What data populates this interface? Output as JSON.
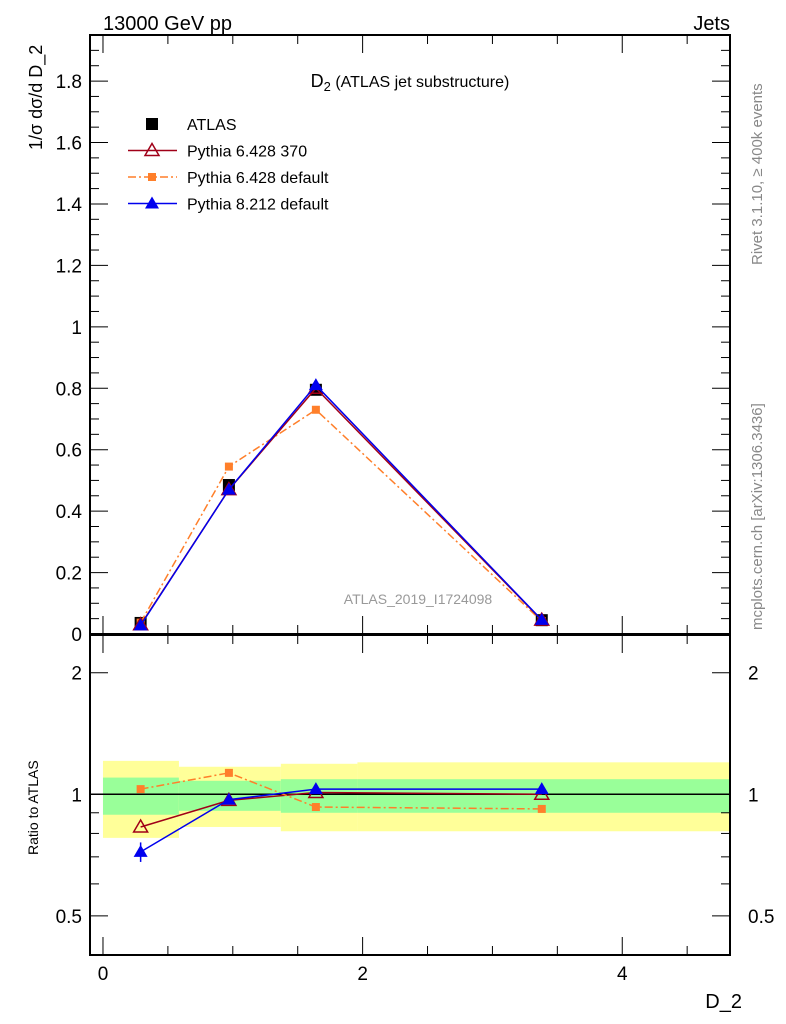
{
  "header": {
    "left": "13000 GeV pp",
    "right": "Jets"
  },
  "side_text": {
    "top": "Rivet 3.1.10, ≥ 400k events",
    "bottom": "mcplots.cern.ch [arXiv:1306.3436]"
  },
  "watermark": "ATLAS_2019_I1724098",
  "colors": {
    "atlas": "#000000",
    "p6_370": "#a00018",
    "p6_default": "#ff7f2a",
    "p8": "#0000ee",
    "band_inner": "#99ff99",
    "band_outer": "#ffff99"
  },
  "chart_data": [
    {
      "type": "line",
      "title_main": "D",
      "title_sub": "2",
      "title_rest": " (ATLAS jet substructure)",
      "ylabel": "1/σ dσ/d D_2",
      "xlabel": "D_2",
      "xlim": [
        -0.1,
        4.83
      ],
      "ylim": [
        0,
        1.95
      ],
      "yticks": [
        0,
        0.2,
        0.4,
        0.6,
        0.8,
        1,
        1.2,
        1.4,
        1.6,
        1.8
      ],
      "ytick_labels": [
        "0",
        "0.2",
        "0.4",
        "0.6",
        "0.8",
        "1",
        "1.2",
        "1.4",
        "1.6",
        "1.8"
      ],
      "x": [
        0.29,
        0.97,
        1.64,
        3.38
      ],
      "legend_placement": "top-left",
      "series": [
        {
          "name": "ATLAS",
          "values": [
            0.036,
            0.485,
            0.795,
            0.045
          ],
          "style": "data"
        },
        {
          "name": "Pythia 6.428 370",
          "values": [
            0.03,
            0.47,
            0.8,
            0.045
          ],
          "style": "p6_370"
        },
        {
          "name": "Pythia 6.428 default",
          "values": [
            0.037,
            0.545,
            0.73,
            0.042
          ],
          "style": "p6_default"
        },
        {
          "name": "Pythia 8.212 default",
          "values": [
            0.028,
            0.47,
            0.81,
            0.046
          ],
          "style": "p8"
        }
      ]
    },
    {
      "type": "line",
      "ylabel": "Ratio to ATLAS",
      "yscale": "log",
      "ylim": [
        0.4,
        2.48
      ],
      "yticks": [
        0.5,
        1,
        2
      ],
      "ytick_labels": [
        "0.5",
        "1",
        "2"
      ],
      "xticks": [
        0,
        2,
        4
      ],
      "xtick_labels": [
        "0",
        "2",
        "4"
      ],
      "bin_edges": [
        0,
        0.585,
        1.37,
        1.96,
        4.83
      ],
      "band_inner": [
        [
          0.89,
          1.1
        ],
        [
          0.91,
          1.08
        ],
        [
          0.9,
          1.09
        ],
        [
          0.9,
          1.09
        ]
      ],
      "band_outer": [
        [
          0.78,
          1.21
        ],
        [
          0.83,
          1.17
        ],
        [
          0.81,
          1.19
        ],
        [
          0.81,
          1.2
        ]
      ],
      "x": [
        0.29,
        0.97,
        1.64,
        3.38
      ],
      "series": [
        {
          "name": "Pythia 6.428 370",
          "values": [
            0.83,
            0.966,
            1.01,
            1.0
          ],
          "style": "p6_370"
        },
        {
          "name": "Pythia 6.428 default",
          "values": [
            1.03,
            1.13,
            0.93,
            0.92
          ],
          "style": "p6_default"
        },
        {
          "name": "Pythia 8.212 default",
          "values": [
            0.72,
            0.97,
            1.03,
            1.03
          ],
          "errors": [
            0.04,
            0.01,
            0.01,
            0.01
          ],
          "style": "p8"
        }
      ]
    }
  ]
}
